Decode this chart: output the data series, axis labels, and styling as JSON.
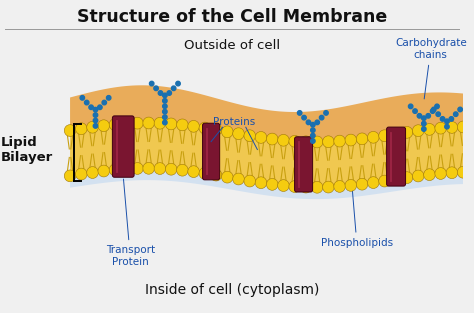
{
  "title": "Structure of the Cell Membrane",
  "outside_label": "Outside of cell",
  "inside_label": "Inside of cell (cytoplasm)",
  "lipid_bilayer_label": "Lipid\nBilayer",
  "labels": {
    "proteins": "Proteins",
    "transport_protein": "Transport\nProtein",
    "phospholipids": "Phospholipids",
    "carbohydrate_chains": "Carbohydrate\nchains"
  },
  "bg_color": "#f0f0f0",
  "title_color": "#111111",
  "label_color": "#1a50aa",
  "outside_inside_color": "#111111",
  "head_color": "#f5cc10",
  "tail_color": "#c8a010",
  "protein_color": "#7a1530",
  "protein_highlight": "#bb3355",
  "carb_color": "#1a70b0",
  "outer_blob_color": "#e8a040",
  "inner_band_color": "#f0c850",
  "line_sep_color": "#999999"
}
